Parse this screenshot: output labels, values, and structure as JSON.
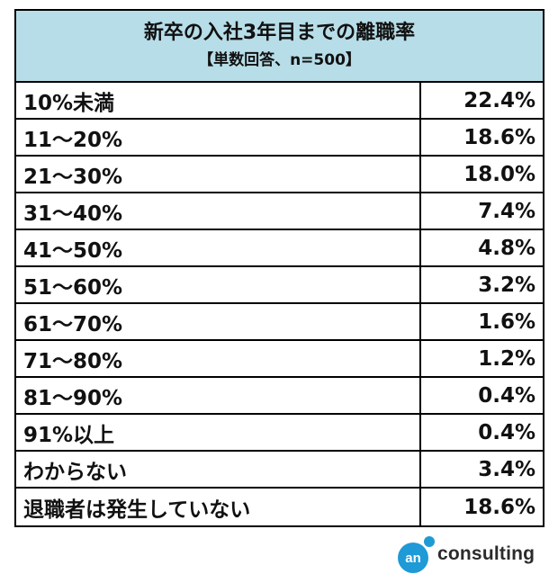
{
  "chart_data": {
    "type": "table",
    "title": "新卒の入社3年目までの離職率",
    "subtitle": "【単数回答、n=500】",
    "categories": [
      "10%未満",
      "11～20%",
      "21～30%",
      "31～40%",
      "41～50%",
      "51～60%",
      "61～70%",
      "71～80%",
      "81～90%",
      "91%以上",
      "わからない",
      "退職者は発生していない"
    ],
    "values": [
      22.4,
      18.6,
      18.0,
      7.4,
      4.8,
      3.2,
      1.6,
      1.2,
      0.4,
      0.4,
      3.4,
      18.6
    ],
    "value_labels": [
      "22.4%",
      "18.6%",
      "18.0%",
      "7.4%",
      "4.8%",
      "3.2%",
      "1.6%",
      "1.2%",
      "0.4%",
      "0.4%",
      "3.4%",
      "18.6%"
    ],
    "unit": "%"
  },
  "logo": {
    "mark_text": "an",
    "text": "consulting"
  },
  "colors": {
    "header_bg": "#b7dde8",
    "logo_circle": "#1e9ad6",
    "border": "#000000"
  }
}
